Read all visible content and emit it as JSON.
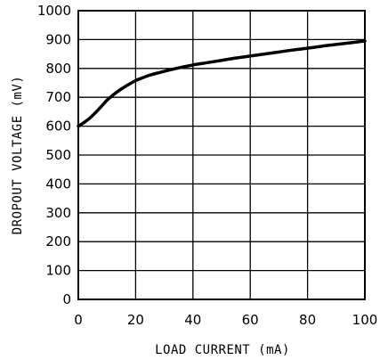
{
  "chart_data": {
    "type": "line",
    "title": "",
    "xlabel": "LOAD CURRENT (mA)",
    "ylabel": "DROPOUT VOLTAGE (mV)",
    "xlim": [
      0,
      100
    ],
    "ylim": [
      0,
      1000
    ],
    "xticks": [
      0,
      20,
      40,
      60,
      80,
      100
    ],
    "yticks": [
      0,
      100,
      200,
      300,
      400,
      500,
      600,
      700,
      800,
      900,
      1000
    ],
    "grid": true,
    "series": [
      {
        "x": [
          0,
          2,
          4,
          6,
          8,
          10,
          12,
          14,
          16,
          18,
          20,
          22,
          25,
          28,
          30,
          35,
          40,
          45,
          50,
          55,
          60,
          65,
          70,
          75,
          80,
          85,
          90,
          95,
          100
        ],
        "y": [
          600,
          613,
          628,
          647,
          668,
          690,
          707,
          722,
          735,
          747,
          758,
          766,
          777,
          785,
          790,
          802,
          812,
          820,
          828,
          836,
          843,
          850,
          857,
          864,
          870,
          877,
          883,
          889,
          895
        ],
        "color": "#000000"
      }
    ]
  }
}
